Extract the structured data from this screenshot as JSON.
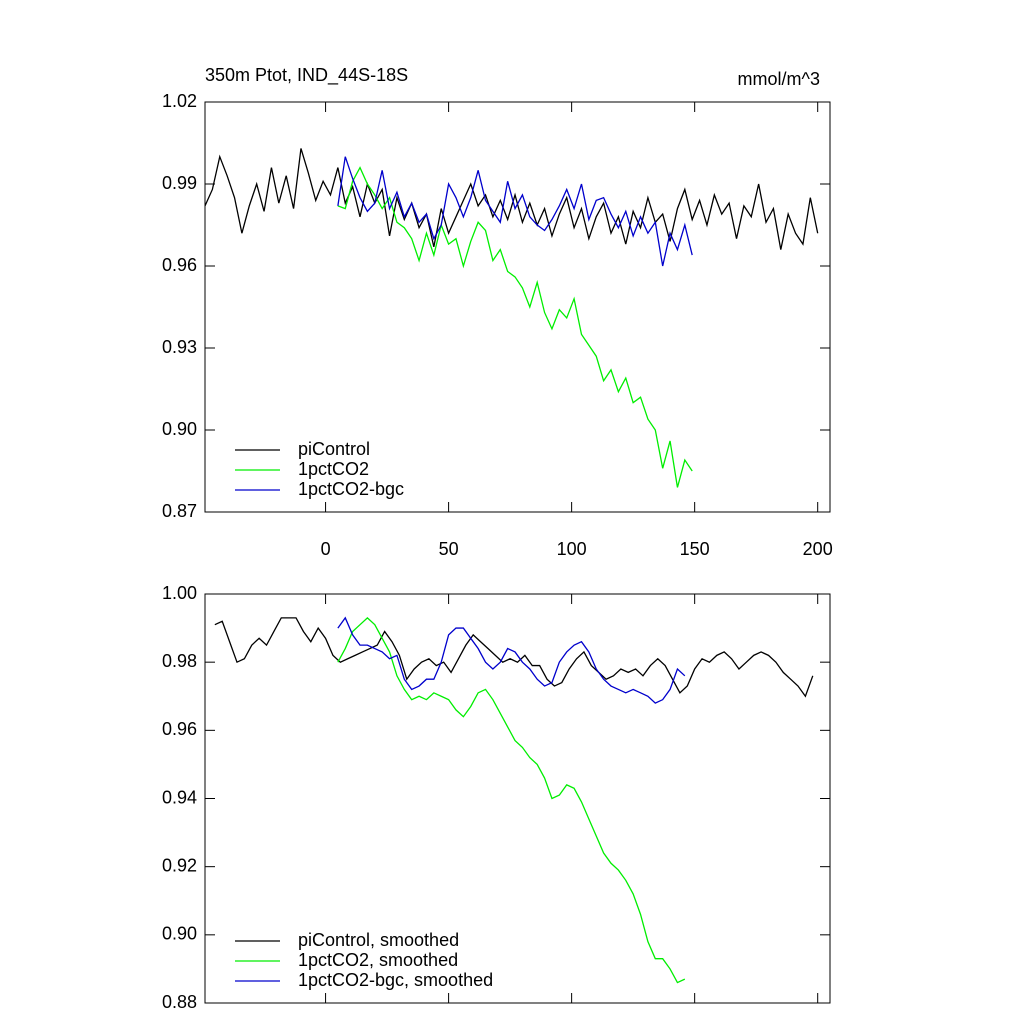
{
  "chart_data": [
    {
      "type": "line",
      "title": "350m Ptot, IND_44S-18S",
      "units": "mmol/m^3",
      "xlim": [
        -49,
        205
      ],
      "xticks": [
        0,
        50,
        100,
        150,
        200
      ],
      "xticklabels": true,
      "ylim": [
        0.87,
        1.02
      ],
      "yticks": [
        0.87,
        {
          "value": 0.9,
          "label": "0.90"
        },
        0.93,
        0.96,
        0.99,
        1.02
      ],
      "legend": "lower left",
      "series": [
        {
          "name": "piControl",
          "color": "#000000",
          "x": [
            -49,
            -46,
            -43,
            -40,
            -37,
            -34,
            -31,
            -28,
            -25,
            -22,
            -19,
            -16,
            -13,
            -10,
            -7,
            -4,
            -1,
            2,
            5,
            8,
            11,
            14,
            17,
            20,
            23,
            26,
            29,
            32,
            35,
            38,
            41,
            44,
            47,
            50,
            53,
            56,
            59,
            62,
            65,
            68,
            71,
            74,
            77,
            80,
            83,
            86,
            89,
            92,
            95,
            98,
            101,
            104,
            107,
            110,
            113,
            116,
            119,
            122,
            125,
            128,
            131,
            134,
            137,
            140,
            143,
            146,
            149,
            152,
            155,
            158,
            161,
            164,
            167,
            170,
            173,
            176,
            179,
            182,
            185,
            188,
            191,
            194,
            197,
            200
          ],
          "values": [
            0.982,
            0.988,
            1.0,
            0.993,
            0.985,
            0.972,
            0.982,
            0.99,
            0.98,
            0.996,
            0.983,
            0.993,
            0.981,
            1.003,
            0.994,
            0.984,
            0.991,
            0.986,
            0.996,
            0.983,
            0.989,
            0.978,
            0.99,
            0.983,
            0.988,
            0.971,
            0.985,
            0.977,
            0.983,
            0.974,
            0.979,
            0.967,
            0.981,
            0.972,
            0.978,
            0.984,
            0.99,
            0.982,
            0.986,
            0.978,
            0.984,
            0.977,
            0.986,
            0.976,
            0.983,
            0.975,
            0.981,
            0.971,
            0.979,
            0.985,
            0.974,
            0.981,
            0.97,
            0.978,
            0.983,
            0.972,
            0.978,
            0.968,
            0.98,
            0.974,
            0.985,
            0.976,
            0.979,
            0.969,
            0.981,
            0.988,
            0.977,
            0.984,
            0.975,
            0.986,
            0.979,
            0.983,
            0.97,
            0.982,
            0.978,
            0.99,
            0.976,
            0.981,
            0.966,
            0.979,
            0.972,
            0.968,
            0.985,
            0.972
          ]
        },
        {
          "name": "1pctCO2",
          "color": "#00ee00",
          "x": [
            5,
            8,
            11,
            14,
            17,
            20,
            23,
            26,
            29,
            32,
            35,
            38,
            41,
            44,
            47,
            50,
            53,
            56,
            59,
            62,
            65,
            68,
            71,
            74,
            77,
            80,
            83,
            86,
            89,
            92,
            95,
            98,
            101,
            104,
            107,
            110,
            113,
            116,
            119,
            122,
            125,
            128,
            131,
            134,
            137,
            140,
            143,
            146,
            149
          ],
          "values": [
            0.982,
            0.981,
            0.991,
            0.996,
            0.99,
            0.986,
            0.981,
            0.985,
            0.976,
            0.974,
            0.97,
            0.962,
            0.972,
            0.964,
            0.975,
            0.968,
            0.97,
            0.96,
            0.969,
            0.976,
            0.973,
            0.962,
            0.966,
            0.958,
            0.956,
            0.952,
            0.945,
            0.954,
            0.943,
            0.937,
            0.944,
            0.941,
            0.948,
            0.935,
            0.931,
            0.927,
            0.918,
            0.922,
            0.914,
            0.919,
            0.91,
            0.912,
            0.904,
            0.9,
            0.886,
            0.896,
            0.879,
            0.889,
            0.885
          ]
        },
        {
          "name": "1pctCO2-bgc",
          "color": "#0000cc",
          "x": [
            5,
            8,
            11,
            14,
            17,
            20,
            23,
            26,
            29,
            32,
            35,
            38,
            41,
            44,
            47,
            50,
            53,
            56,
            59,
            62,
            65,
            68,
            71,
            74,
            77,
            80,
            83,
            86,
            89,
            92,
            95,
            98,
            101,
            104,
            107,
            110,
            113,
            116,
            119,
            122,
            125,
            128,
            131,
            134,
            137,
            140,
            143,
            146,
            149
          ],
          "values": [
            0.982,
            1.0,
            0.992,
            0.985,
            0.98,
            0.983,
            0.995,
            0.981,
            0.987,
            0.978,
            0.983,
            0.976,
            0.979,
            0.97,
            0.975,
            0.99,
            0.985,
            0.978,
            0.985,
            0.995,
            0.984,
            0.98,
            0.976,
            0.991,
            0.981,
            0.986,
            0.978,
            0.975,
            0.973,
            0.977,
            0.982,
            0.988,
            0.981,
            0.99,
            0.977,
            0.984,
            0.985,
            0.979,
            0.974,
            0.98,
            0.971,
            0.978,
            0.972,
            0.976,
            0.96,
            0.972,
            0.966,
            0.975,
            0.964
          ]
        }
      ]
    },
    {
      "type": "line",
      "xlim": [
        -49,
        205
      ],
      "xticks": [
        0,
        50,
        100,
        150,
        200
      ],
      "xticklabels": false,
      "ylim": [
        0.88,
        1.0
      ],
      "yticks": [
        0.88,
        {
          "value": 0.9,
          "label": "0.90"
        },
        0.92,
        0.94,
        0.96,
        0.98,
        {
          "value": 1.0,
          "label": "1.00"
        }
      ],
      "legend": "lower left",
      "series": [
        {
          "name": "piControl, smoothed",
          "color": "#000000",
          "x": [
            -45,
            -42,
            -39,
            -36,
            -33,
            -30,
            -27,
            -24,
            -21,
            -18,
            -15,
            -12,
            -9,
            -6,
            -3,
            0,
            3,
            6,
            9,
            12,
            15,
            18,
            21,
            24,
            27,
            30,
            33,
            36,
            39,
            42,
            45,
            48,
            51,
            54,
            57,
            60,
            63,
            66,
            69,
            72,
            75,
            78,
            81,
            84,
            87,
            90,
            93,
            96,
            99,
            102,
            105,
            108,
            111,
            114,
            117,
            120,
            123,
            126,
            129,
            132,
            135,
            138,
            141,
            144,
            147,
            150,
            153,
            156,
            159,
            162,
            165,
            168,
            171,
            174,
            177,
            180,
            183,
            186,
            189,
            192,
            195,
            198
          ],
          "values": [
            0.991,
            0.992,
            0.986,
            0.98,
            0.981,
            0.985,
            0.987,
            0.985,
            0.989,
            0.993,
            0.993,
            0.993,
            0.989,
            0.986,
            0.99,
            0.987,
            0.982,
            0.98,
            0.981,
            0.982,
            0.983,
            0.984,
            0.985,
            0.989,
            0.986,
            0.982,
            0.975,
            0.978,
            0.98,
            0.981,
            0.979,
            0.98,
            0.977,
            0.981,
            0.985,
            0.988,
            0.986,
            0.984,
            0.982,
            0.98,
            0.981,
            0.98,
            0.982,
            0.979,
            0.979,
            0.975,
            0.973,
            0.974,
            0.978,
            0.981,
            0.983,
            0.979,
            0.977,
            0.975,
            0.976,
            0.978,
            0.977,
            0.978,
            0.976,
            0.979,
            0.981,
            0.979,
            0.975,
            0.971,
            0.973,
            0.978,
            0.981,
            0.98,
            0.982,
            0.983,
            0.981,
            0.978,
            0.98,
            0.982,
            0.983,
            0.982,
            0.98,
            0.977,
            0.975,
            0.973,
            0.97,
            0.976
          ]
        },
        {
          "name": "1pctCO2, smoothed",
          "color": "#00ee00",
          "x": [
            5,
            8,
            11,
            14,
            17,
            20,
            23,
            26,
            29,
            32,
            35,
            38,
            41,
            44,
            47,
            50,
            53,
            56,
            59,
            62,
            65,
            68,
            71,
            74,
            77,
            80,
            83,
            86,
            89,
            92,
            95,
            98,
            101,
            104,
            107,
            110,
            113,
            116,
            119,
            122,
            125,
            128,
            131,
            134,
            137,
            140,
            143,
            146
          ],
          "values": [
            0.98,
            0.984,
            0.989,
            0.991,
            0.993,
            0.991,
            0.987,
            0.983,
            0.976,
            0.972,
            0.969,
            0.97,
            0.969,
            0.971,
            0.97,
            0.969,
            0.966,
            0.964,
            0.967,
            0.971,
            0.972,
            0.969,
            0.965,
            0.961,
            0.957,
            0.955,
            0.952,
            0.95,
            0.946,
            0.94,
            0.941,
            0.944,
            0.943,
            0.939,
            0.934,
            0.929,
            0.924,
            0.921,
            0.919,
            0.916,
            0.912,
            0.906,
            0.898,
            0.893,
            0.893,
            0.89,
            0.886,
            0.887
          ]
        },
        {
          "name": "1pctCO2-bgc, smoothed",
          "color": "#0000cc",
          "x": [
            5,
            8,
            11,
            14,
            17,
            20,
            23,
            26,
            29,
            32,
            35,
            38,
            41,
            44,
            47,
            50,
            53,
            56,
            59,
            62,
            65,
            68,
            71,
            74,
            77,
            80,
            83,
            86,
            89,
            92,
            95,
            98,
            101,
            104,
            107,
            110,
            113,
            116,
            119,
            122,
            125,
            128,
            131,
            134,
            137,
            140,
            143,
            146
          ],
          "values": [
            0.99,
            0.993,
            0.988,
            0.985,
            0.985,
            0.984,
            0.983,
            0.981,
            0.982,
            0.975,
            0.972,
            0.973,
            0.975,
            0.975,
            0.98,
            0.988,
            0.99,
            0.99,
            0.987,
            0.984,
            0.98,
            0.978,
            0.98,
            0.984,
            0.983,
            0.98,
            0.978,
            0.975,
            0.973,
            0.974,
            0.98,
            0.983,
            0.985,
            0.986,
            0.983,
            0.978,
            0.975,
            0.973,
            0.972,
            0.971,
            0.972,
            0.971,
            0.97,
            0.968,
            0.969,
            0.972,
            0.978,
            0.976
          ]
        }
      ]
    }
  ]
}
